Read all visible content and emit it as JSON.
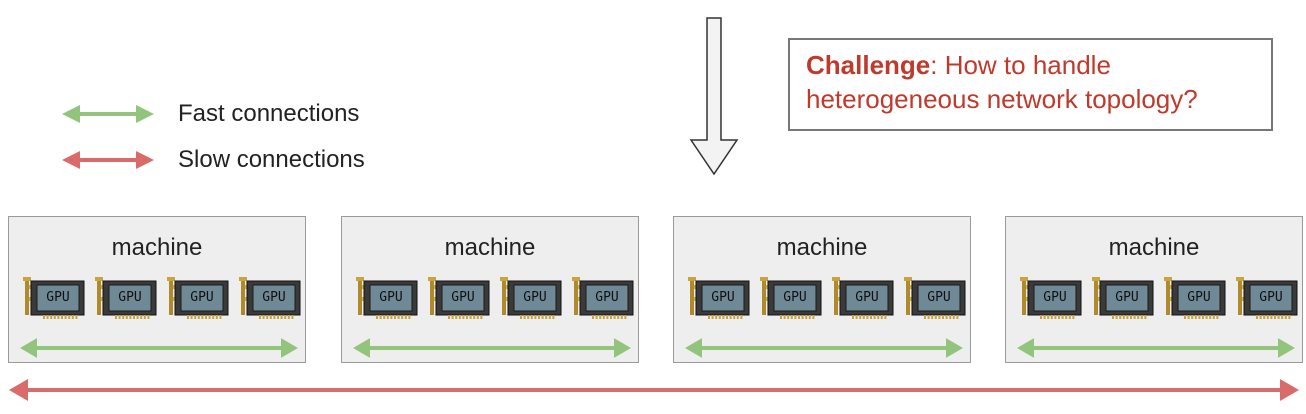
{
  "legend": {
    "fast": {
      "label": "Fast connections",
      "color": "#93c47d"
    },
    "slow": {
      "label": "Slow connections",
      "color": "#d96b6b"
    }
  },
  "challenge": {
    "bold": "Challenge",
    "rest_line1": ": How to handle",
    "line2": "heterogeneous network topology?",
    "color": "#c0392b"
  },
  "machines": [
    {
      "title": "machine",
      "gpus": [
        "GPU",
        "GPU",
        "GPU",
        "GPU"
      ]
    },
    {
      "title": "machine",
      "gpus": [
        "GPU",
        "GPU",
        "GPU",
        "GPU"
      ]
    },
    {
      "title": "machine",
      "gpus": [
        "GPU",
        "GPU",
        "GPU",
        "GPU"
      ]
    },
    {
      "title": "machine",
      "gpus": [
        "GPU",
        "GPU",
        "GPU",
        "GPU"
      ]
    }
  ],
  "icons": {
    "down_arrow": "down-arrow-icon",
    "gpu": "gpu-card-icon"
  }
}
